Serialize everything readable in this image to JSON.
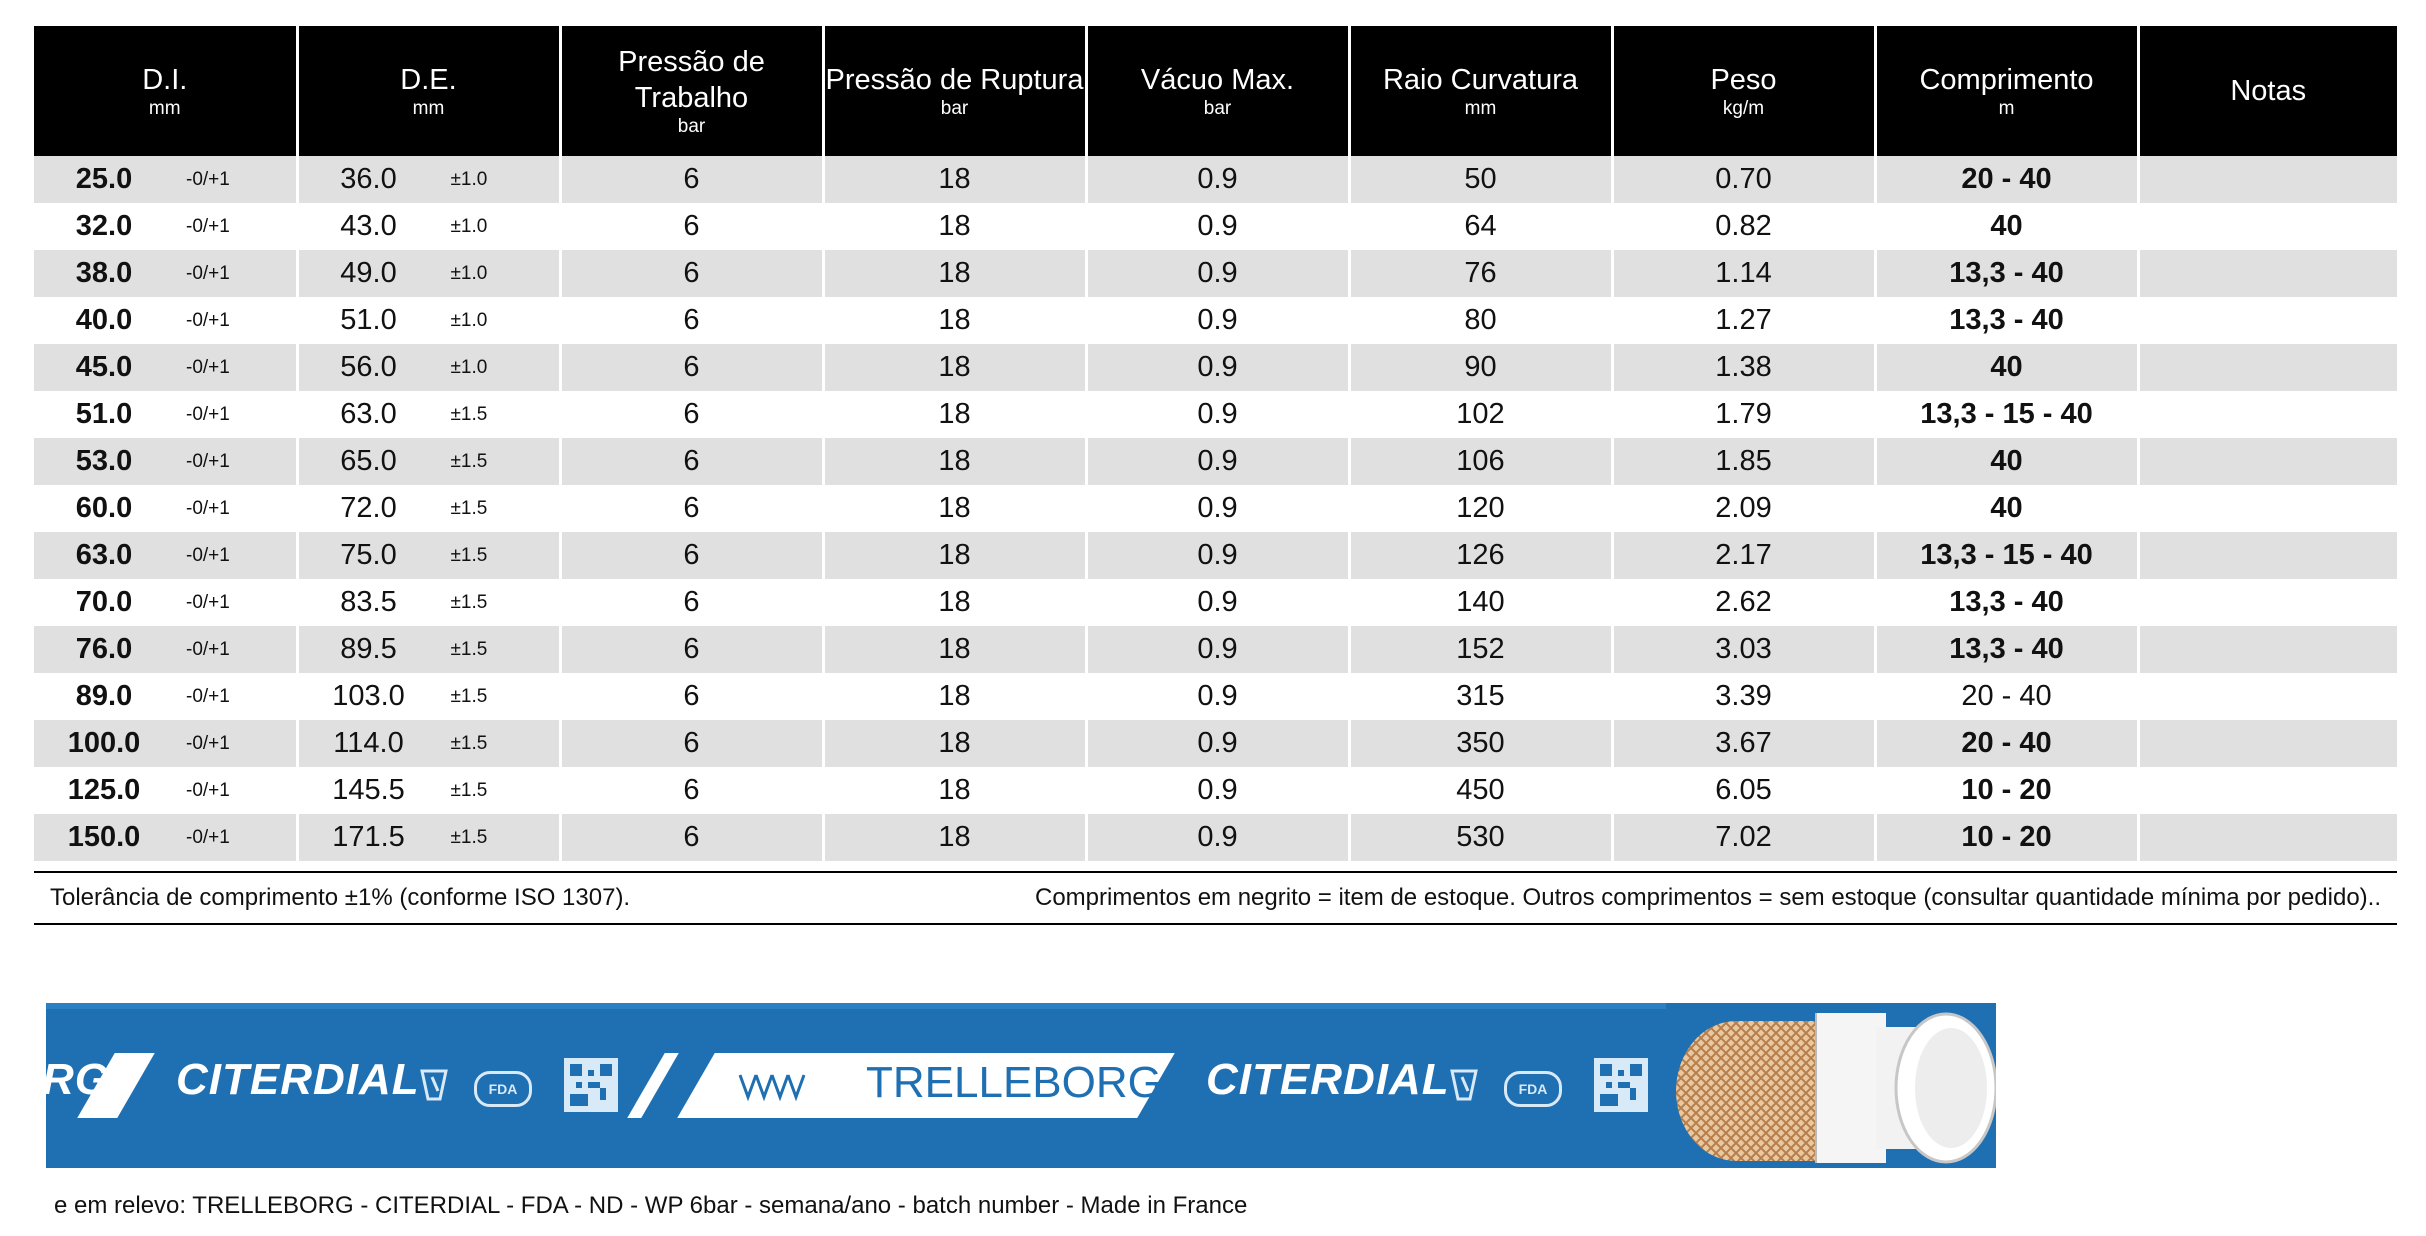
{
  "headers": [
    {
      "label": "D.I.",
      "unit": "mm"
    },
    {
      "label": "D.E.",
      "unit": "mm"
    },
    {
      "label": "Pressão de Trabalho",
      "unit": "bar"
    },
    {
      "label": "Pressão de Ruptura",
      "unit": "bar"
    },
    {
      "label": "Vácuo Max.",
      "unit": "bar"
    },
    {
      "label": "Raio Curvatura",
      "unit": "mm"
    },
    {
      "label": "Peso",
      "unit": "kg/m"
    },
    {
      "label": "Comprimento",
      "unit": "m"
    },
    {
      "label": "Notas",
      "unit": ""
    }
  ],
  "rows": [
    {
      "di": "25.0",
      "di_tol": "-0/+1",
      "de": "36.0",
      "de_tol": "±1.0",
      "wp": "6",
      "bp": "18",
      "vac": "0.9",
      "radius": "50",
      "weight": "0.70",
      "length": "20 - 40",
      "length_bold": true,
      "notes": ""
    },
    {
      "di": "32.0",
      "di_tol": "-0/+1",
      "de": "43.0",
      "de_tol": "±1.0",
      "wp": "6",
      "bp": "18",
      "vac": "0.9",
      "radius": "64",
      "weight": "0.82",
      "length": "40",
      "length_bold": true,
      "notes": ""
    },
    {
      "di": "38.0",
      "di_tol": "-0/+1",
      "de": "49.0",
      "de_tol": "±1.0",
      "wp": "6",
      "bp": "18",
      "vac": "0.9",
      "radius": "76",
      "weight": "1.14",
      "length": "13,3 - 40",
      "length_bold": true,
      "notes": ""
    },
    {
      "di": "40.0",
      "di_tol": "-0/+1",
      "de": "51.0",
      "de_tol": "±1.0",
      "wp": "6",
      "bp": "18",
      "vac": "0.9",
      "radius": "80",
      "weight": "1.27",
      "length": "13,3 - 40",
      "length_bold": true,
      "notes": ""
    },
    {
      "di": "45.0",
      "di_tol": "-0/+1",
      "de": "56.0",
      "de_tol": "±1.0",
      "wp": "6",
      "bp": "18",
      "vac": "0.9",
      "radius": "90",
      "weight": "1.38",
      "length": "40",
      "length_bold": true,
      "notes": ""
    },
    {
      "di": "51.0",
      "di_tol": "-0/+1",
      "de": "63.0",
      "de_tol": "±1.5",
      "wp": "6",
      "bp": "18",
      "vac": "0.9",
      "radius": "102",
      "weight": "1.79",
      "length": "13,3 - 15 - 40",
      "length_bold": true,
      "notes": ""
    },
    {
      "di": "53.0",
      "di_tol": "-0/+1",
      "de": "65.0",
      "de_tol": "±1.5",
      "wp": "6",
      "bp": "18",
      "vac": "0.9",
      "radius": "106",
      "weight": "1.85",
      "length": "40",
      "length_bold": true,
      "notes": ""
    },
    {
      "di": "60.0",
      "di_tol": "-0/+1",
      "de": "72.0",
      "de_tol": "±1.5",
      "wp": "6",
      "bp": "18",
      "vac": "0.9",
      "radius": "120",
      "weight": "2.09",
      "length": "40",
      "length_bold": true,
      "notes": ""
    },
    {
      "di": "63.0",
      "di_tol": "-0/+1",
      "de": "75.0",
      "de_tol": "±1.5",
      "wp": "6",
      "bp": "18",
      "vac": "0.9",
      "radius": "126",
      "weight": "2.17",
      "length": "13,3 - 15 - 40",
      "length_bold": true,
      "notes": ""
    },
    {
      "di": "70.0",
      "di_tol": "-0/+1",
      "de": "83.5",
      "de_tol": "±1.5",
      "wp": "6",
      "bp": "18",
      "vac": "0.9",
      "radius": "140",
      "weight": "2.62",
      "length": "13,3 - 40",
      "length_bold": true,
      "notes": ""
    },
    {
      "di": "76.0",
      "di_tol": "-0/+1",
      "de": "89.5",
      "de_tol": "±1.5",
      "wp": "6",
      "bp": "18",
      "vac": "0.9",
      "radius": "152",
      "weight": "3.03",
      "length": "13,3 - 40",
      "length_bold": true,
      "notes": ""
    },
    {
      "di": "89.0",
      "di_tol": "-0/+1",
      "de": "103.0",
      "de_tol": "±1.5",
      "wp": "6",
      "bp": "18",
      "vac": "0.9",
      "radius": "315",
      "weight": "3.39",
      "length": "20 - 40",
      "length_bold": false,
      "notes": ""
    },
    {
      "di": "100.0",
      "di_tol": "-0/+1",
      "de": "114.0",
      "de_tol": "±1.5",
      "wp": "6",
      "bp": "18",
      "vac": "0.9",
      "radius": "350",
      "weight": "3.67",
      "length": "20 - 40",
      "length_bold": true,
      "notes": ""
    },
    {
      "di": "125.0",
      "di_tol": "-0/+1",
      "de": "145.5",
      "de_tol": "±1.5",
      "wp": "6",
      "bp": "18",
      "vac": "0.9",
      "radius": "450",
      "weight": "6.05",
      "length": "10 - 20",
      "length_bold": true,
      "notes": ""
    },
    {
      "di": "150.0",
      "di_tol": "-0/+1",
      "de": "171.5",
      "de_tol": "±1.5",
      "wp": "6",
      "bp": "18",
      "vac": "0.9",
      "radius": "530",
      "weight": "7.02",
      "length": "10 - 20",
      "length_bold": true,
      "notes": ""
    }
  ],
  "footnote_left": "Tolerância de comprimento ±1% (conforme ISO 1307).",
  "footnote_right": "Comprimentos em negrito = item de estoque. Outros comprimentos = sem estoque (consultar quantidade mínima por pedido)..",
  "hose": {
    "brand_fragment": "RG",
    "product": "CITERDIAL",
    "brand": "TRELLEBORG",
    "fda": "FDA",
    "color": "#1f6fb3"
  },
  "marking": "e em relevo: TRELLEBORG - CITERDIAL - FDA - ND - WP 6bar - semana/ano - batch number - Made in France"
}
